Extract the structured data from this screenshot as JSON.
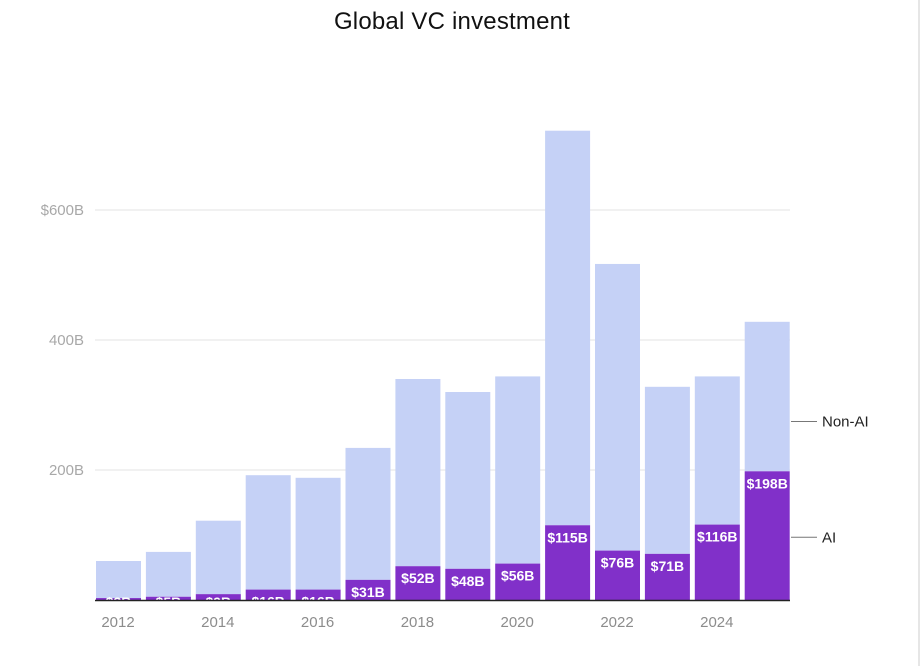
{
  "chart_data": {
    "type": "bar",
    "stacked": true,
    "title": "Global VC investment",
    "xlabel": "",
    "ylabel": "",
    "categories": [
      "2012",
      "2013",
      "2014",
      "2015",
      "2016",
      "2017",
      "2018",
      "2019",
      "2020",
      "2021",
      "2022",
      "2023",
      "2024",
      "2025"
    ],
    "x_tick_labels": [
      "2012",
      "",
      "2014",
      "",
      "2016",
      "",
      "2018",
      "",
      "2020",
      "",
      "2022",
      "",
      "2024",
      ""
    ],
    "series": [
      {
        "name": "AI",
        "color": "#8130c9",
        "values": [
          3,
          5,
          9,
          16,
          16,
          31,
          52,
          48,
          56,
          115,
          76,
          71,
          116,
          198
        ],
        "labels": [
          "$3B",
          "$5B",
          "$9B",
          "$16B",
          "$16B",
          "$31B",
          "$52B",
          "$48B",
          "$56B",
          "$115B",
          "$76B",
          "$71B",
          "$116B",
          "$198B"
        ]
      },
      {
        "name": "Non-AI",
        "color": "#c5d1f6",
        "values": [
          57,
          69,
          113,
          176,
          172,
          203,
          288,
          272,
          288,
          607,
          441,
          257,
          228,
          230
        ]
      }
    ],
    "y_ticks": [
      {
        "value": 200,
        "label": "200B"
      },
      {
        "value": 400,
        "label": "400B"
      },
      {
        "value": 600,
        "label": "$600B"
      }
    ],
    "ylim": [
      0,
      720
    ],
    "grid": true,
    "legend": "direct-labels-right"
  }
}
